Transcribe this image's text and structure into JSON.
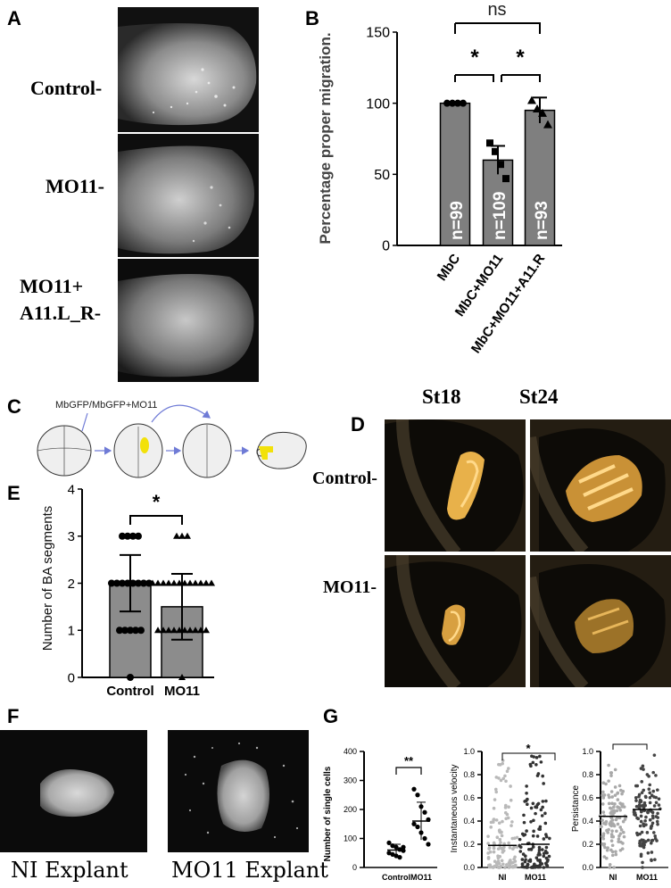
{
  "panels": {
    "a": {
      "letter": "A",
      "rows": [
        "Control-",
        "MO11-",
        "MO11+",
        "A11.L_R-"
      ]
    },
    "b": {
      "letter": "B",
      "ns_label": "ns",
      "star": "*",
      "n_labels": [
        "n=99",
        "n=109",
        "n=93"
      ]
    },
    "c": {
      "letter": "C",
      "injection_label": "MbGFP/MbGFP+MO11"
    },
    "d": {
      "letter": "D",
      "stages": [
        "St18",
        "St24"
      ],
      "rows": [
        "Control-",
        "MO11-"
      ]
    },
    "e": {
      "letter": "E",
      "star": "*"
    },
    "f": {
      "letter": "F",
      "captions": [
        "NI Explant",
        "MO11 Explant"
      ]
    },
    "g": {
      "letter": "G",
      "stars": [
        "**",
        "*",
        "*"
      ]
    }
  },
  "chart_data": [
    {
      "id": "B",
      "type": "bar",
      "categories": [
        "MbC",
        "MbC+MO11",
        "MbC+MO11+A11.R"
      ],
      "values": [
        100,
        60,
        95
      ],
      "errors": [
        0,
        10,
        9
      ],
      "points": [
        [
          100,
          100,
          100,
          100
        ],
        [
          72,
          66,
          57,
          47
        ],
        [
          102,
          96,
          93,
          85
        ]
      ],
      "ylabel": "Percentage proper  migration.",
      "ylim": [
        0,
        150
      ],
      "yticks": [
        0,
        50,
        100,
        150
      ],
      "bar_color": "#7f7f7f"
    },
    {
      "id": "E",
      "type": "bar",
      "categories": [
        "Control",
        "MO11"
      ],
      "values": [
        2.0,
        1.5
      ],
      "errors": [
        0.6,
        0.7
      ],
      "ylabel": "Number of BA segments",
      "ylim": [
        0,
        4
      ],
      "yticks": [
        0,
        1,
        2,
        3,
        4
      ],
      "bar_color": "#8c8c8c"
    },
    {
      "id": "G1",
      "type": "scatter",
      "categories": [
        "Control",
        "MO11"
      ],
      "ylabel": "Number of single cells",
      "ylim": [
        0,
        400
      ],
      "yticks": [
        0,
        100,
        200,
        300,
        400
      ],
      "means": [
        60,
        160
      ],
      "sd": [
        20,
        65
      ],
      "points": [
        [
          85,
          75,
          70,
          62,
          58,
          50,
          45,
          40,
          35,
          70
        ],
        [
          270,
          250,
          210,
          190,
          165,
          150,
          140,
          120,
          100,
          80
        ]
      ]
    },
    {
      "id": "G2",
      "type": "scatter",
      "categories": [
        "NI",
        "MO11"
      ],
      "ylabel": "Instantaneous velocity",
      "ylim": [
        0,
        1.0
      ],
      "yticks": [
        0.0,
        0.2,
        0.4,
        0.6,
        0.8,
        1.0
      ],
      "means": [
        0.19,
        0.2
      ]
    },
    {
      "id": "G3",
      "type": "scatter",
      "categories": [
        "NI",
        "MO11"
      ],
      "ylabel": "Persistance",
      "ylim": [
        0,
        1.0
      ],
      "yticks": [
        0.0,
        0.2,
        0.4,
        0.6,
        0.8,
        1.0
      ],
      "means": [
        0.44,
        0.5
      ]
    }
  ]
}
